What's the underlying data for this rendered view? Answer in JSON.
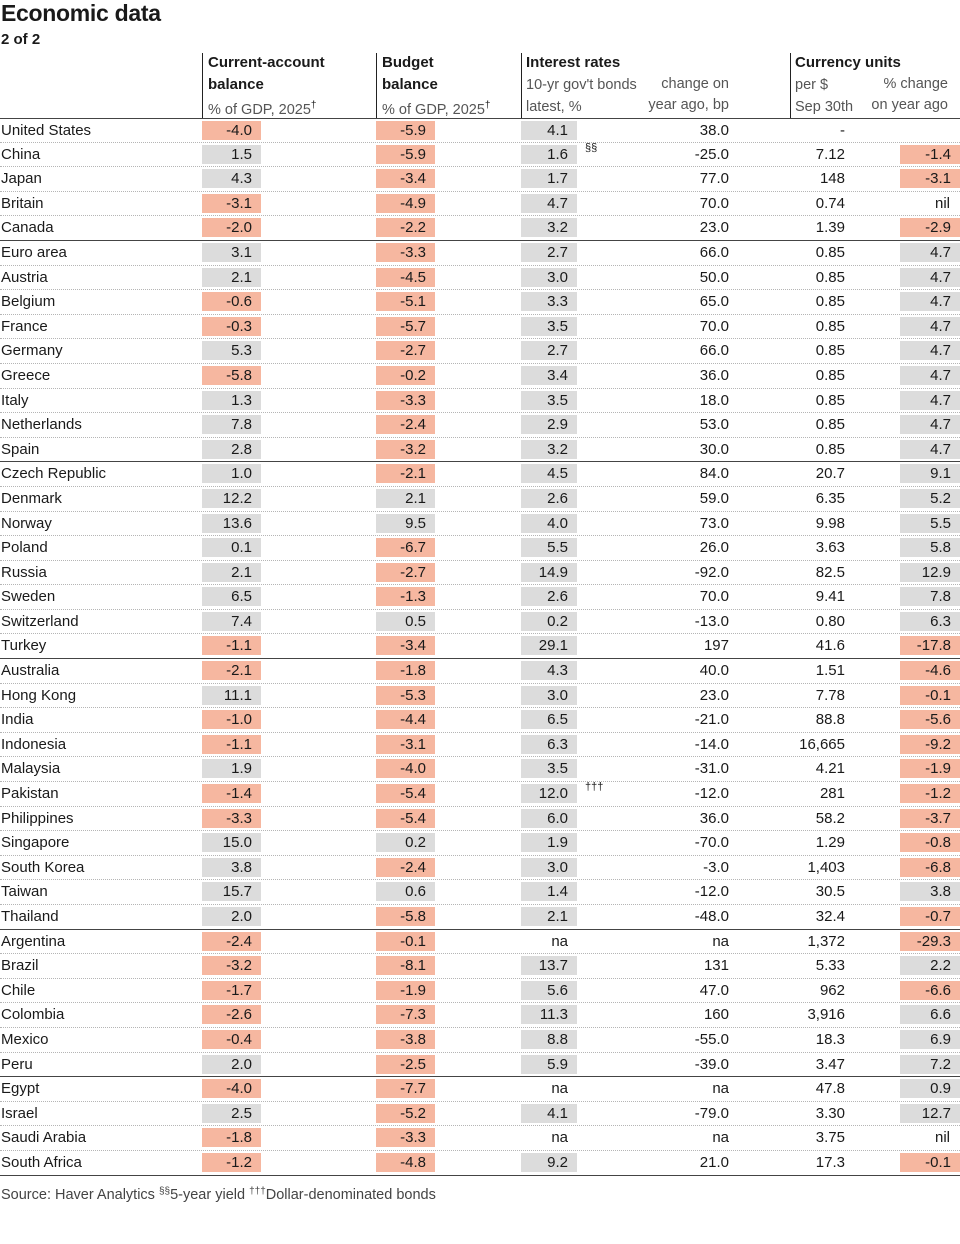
{
  "title": "Economic data",
  "subtitle": "2 of 2",
  "headers": {
    "current_account": {
      "line1": "Current-account",
      "line2": "balance",
      "line3": "% of GDP, 2025",
      "mark": "†"
    },
    "budget": {
      "line1": "Budget",
      "line2": "balance",
      "line3": "% of GDP, 2025",
      "mark": "†"
    },
    "interest": {
      "line1": "Interest rates",
      "sub_a1": "10-yr gov't bonds",
      "sub_a2": "latest, %",
      "sub_b1": "change on",
      "sub_b2": "year ago, bp"
    },
    "currency": {
      "line1": "Currency units",
      "sub_a1": "per $",
      "sub_a2": "Sep 30th",
      "sub_b1": "% change",
      "sub_b2": "on year ago"
    }
  },
  "rows": [
    {
      "country": "United States",
      "ca": "-4.0",
      "bb": "-5.9",
      "ir": "4.1",
      "chg": "38.0",
      "usd": "-",
      "fx": "",
      "end": false
    },
    {
      "country": "China",
      "ca": "1.5",
      "bb": "-5.9",
      "ir": "1.6",
      "fn": "§§",
      "chg": "-25.0",
      "usd": "7.12",
      "fx": "-1.4",
      "end": false
    },
    {
      "country": "Japan",
      "ca": "4.3",
      "bb": "-3.4",
      "ir": "1.7",
      "chg": "77.0",
      "usd": "148",
      "fx": "-3.1",
      "end": false
    },
    {
      "country": "Britain",
      "ca": "-3.1",
      "bb": "-4.9",
      "ir": "4.7",
      "chg": "70.0",
      "usd": "0.74",
      "fx": "nil",
      "end": false
    },
    {
      "country": "Canada",
      "ca": "-2.0",
      "bb": "-2.2",
      "ir": "3.2",
      "chg": "23.0",
      "usd": "1.39",
      "fx": "-2.9",
      "end": true
    },
    {
      "country": "Euro area",
      "ca": "3.1",
      "bb": "-3.3",
      "ir": "2.7",
      "chg": "66.0",
      "usd": "0.85",
      "fx": "4.7",
      "end": false
    },
    {
      "country": "Austria",
      "ca": "2.1",
      "bb": "-4.5",
      "ir": "3.0",
      "chg": "50.0",
      "usd": "0.85",
      "fx": "4.7",
      "end": false
    },
    {
      "country": "Belgium",
      "ca": "-0.6",
      "bb": "-5.1",
      "ir": "3.3",
      "chg": "65.0",
      "usd": "0.85",
      "fx": "4.7",
      "end": false
    },
    {
      "country": "France",
      "ca": "-0.3",
      "bb": "-5.7",
      "ir": "3.5",
      "chg": "70.0",
      "usd": "0.85",
      "fx": "4.7",
      "end": false
    },
    {
      "country": "Germany",
      "ca": "5.3",
      "bb": "-2.7",
      "ir": "2.7",
      "chg": "66.0",
      "usd": "0.85",
      "fx": "4.7",
      "end": false
    },
    {
      "country": "Greece",
      "ca": "-5.8",
      "bb": "-0.2",
      "ir": "3.4",
      "chg": "36.0",
      "usd": "0.85",
      "fx": "4.7",
      "end": false
    },
    {
      "country": "Italy",
      "ca": "1.3",
      "bb": "-3.3",
      "ir": "3.5",
      "chg": "18.0",
      "usd": "0.85",
      "fx": "4.7",
      "end": false
    },
    {
      "country": "Netherlands",
      "ca": "7.8",
      "bb": "-2.4",
      "ir": "2.9",
      "chg": "53.0",
      "usd": "0.85",
      "fx": "4.7",
      "end": false
    },
    {
      "country": "Spain",
      "ca": "2.8",
      "bb": "-3.2",
      "ir": "3.2",
      "chg": "30.0",
      "usd": "0.85",
      "fx": "4.7",
      "end": true
    },
    {
      "country": "Czech Republic",
      "ca": "1.0",
      "bb": "-2.1",
      "ir": "4.5",
      "chg": "84.0",
      "usd": "20.7",
      "fx": "9.1",
      "end": false
    },
    {
      "country": "Denmark",
      "ca": "12.2",
      "bb": "2.1",
      "ir": "2.6",
      "chg": "59.0",
      "usd": "6.35",
      "fx": "5.2",
      "end": false
    },
    {
      "country": "Norway",
      "ca": "13.6",
      "bb": "9.5",
      "ir": "4.0",
      "chg": "73.0",
      "usd": "9.98",
      "fx": "5.5",
      "end": false
    },
    {
      "country": "Poland",
      "ca": "0.1",
      "bb": "-6.7",
      "ir": "5.5",
      "chg": "26.0",
      "usd": "3.63",
      "fx": "5.8",
      "end": false
    },
    {
      "country": "Russia",
      "ca": "2.1",
      "bb": "-2.7",
      "ir": "14.9",
      "chg": "-92.0",
      "usd": "82.5",
      "fx": "12.9",
      "end": false
    },
    {
      "country": "Sweden",
      "ca": "6.5",
      "bb": "-1.3",
      "ir": "2.6",
      "chg": "70.0",
      "usd": "9.41",
      "fx": "7.8",
      "end": false
    },
    {
      "country": "Switzerland",
      "ca": "7.4",
      "bb": "0.5",
      "ir": "0.2",
      "chg": "-13.0",
      "usd": "0.80",
      "fx": "6.3",
      "end": false
    },
    {
      "country": "Turkey",
      "ca": "-1.1",
      "bb": "-3.4",
      "ir": "29.1",
      "chg": "197",
      "usd": "41.6",
      "fx": "-17.8",
      "end": true
    },
    {
      "country": "Australia",
      "ca": "-2.1",
      "bb": "-1.8",
      "ir": "4.3",
      "chg": "40.0",
      "usd": "1.51",
      "fx": "-4.6",
      "end": false
    },
    {
      "country": "Hong Kong",
      "ca": "11.1",
      "bb": "-5.3",
      "ir": "3.0",
      "chg": "23.0",
      "usd": "7.78",
      "fx": "-0.1",
      "end": false
    },
    {
      "country": "India",
      "ca": "-1.0",
      "bb": "-4.4",
      "ir": "6.5",
      "chg": "-21.0",
      "usd": "88.8",
      "fx": "-5.6",
      "end": false
    },
    {
      "country": "Indonesia",
      "ca": "-1.1",
      "bb": "-3.1",
      "ir": "6.3",
      "chg": "-14.0",
      "usd": "16,665",
      "fx": "-9.2",
      "end": false
    },
    {
      "country": "Malaysia",
      "ca": "1.9",
      "bb": "-4.0",
      "ir": "3.5",
      "chg": "-31.0",
      "usd": "4.21",
      "fx": "-1.9",
      "end": false
    },
    {
      "country": "Pakistan",
      "ca": "-1.4",
      "bb": "-5.4",
      "ir": "12.0",
      "fn": "†††",
      "chg": "-12.0",
      "usd": "281",
      "fx": "-1.2",
      "end": false
    },
    {
      "country": "Philippines",
      "ca": "-3.3",
      "bb": "-5.4",
      "ir": "6.0",
      "chg": "36.0",
      "usd": "58.2",
      "fx": "-3.7",
      "end": false
    },
    {
      "country": "Singapore",
      "ca": "15.0",
      "bb": "0.2",
      "ir": "1.9",
      "chg": "-70.0",
      "usd": "1.29",
      "fx": "-0.8",
      "end": false
    },
    {
      "country": "South Korea",
      "ca": "3.8",
      "bb": "-2.4",
      "ir": "3.0",
      "chg": "-3.0",
      "usd": "1,403",
      "fx": "-6.8",
      "end": false
    },
    {
      "country": "Taiwan",
      "ca": "15.7",
      "bb": "0.6",
      "ir": "1.4",
      "chg": "-12.0",
      "usd": "30.5",
      "fx": "3.8",
      "end": false
    },
    {
      "country": "Thailand",
      "ca": "2.0",
      "bb": "-5.8",
      "ir": "2.1",
      "chg": "-48.0",
      "usd": "32.4",
      "fx": "-0.7",
      "end": true
    },
    {
      "country": "Argentina",
      "ca": "-2.4",
      "bb": "-0.1",
      "ir": "na",
      "chg": "na",
      "usd": "1,372",
      "fx": "-29.3",
      "end": false
    },
    {
      "country": "Brazil",
      "ca": "-3.2",
      "bb": "-8.1",
      "ir": "13.7",
      "chg": "131",
      "usd": "5.33",
      "fx": "2.2",
      "end": false
    },
    {
      "country": "Chile",
      "ca": "-1.7",
      "bb": "-1.9",
      "ir": "5.6",
      "chg": "47.0",
      "usd": "962",
      "fx": "-6.6",
      "end": false
    },
    {
      "country": "Colombia",
      "ca": "-2.6",
      "bb": "-7.3",
      "ir": "11.3",
      "chg": "160",
      "usd": "3,916",
      "fx": "6.6",
      "end": false
    },
    {
      "country": "Mexico",
      "ca": "-0.4",
      "bb": "-3.8",
      "ir": "8.8",
      "chg": "-55.0",
      "usd": "18.3",
      "fx": "6.9",
      "end": false
    },
    {
      "country": "Peru",
      "ca": "2.0",
      "bb": "-2.5",
      "ir": "5.9",
      "chg": "-39.0",
      "usd": "3.47",
      "fx": "7.2",
      "end": true
    },
    {
      "country": "Egypt",
      "ca": "-4.0",
      "bb": "-7.7",
      "ir": "na",
      "chg": "na",
      "usd": "47.8",
      "fx": "0.9",
      "end": false
    },
    {
      "country": "Israel",
      "ca": "2.5",
      "bb": "-5.2",
      "ir": "4.1",
      "chg": "-79.0",
      "usd": "3.30",
      "fx": "12.7",
      "end": false
    },
    {
      "country": "Saudi Arabia",
      "ca": "-1.8",
      "bb": "-3.3",
      "ir": "na",
      "chg": "na",
      "usd": "3.75",
      "fx": "nil",
      "end": false
    },
    {
      "country": "South Africa",
      "ca": "-1.2",
      "bb": "-4.8",
      "ir": "9.2",
      "chg": "21.0",
      "usd": "17.3",
      "fx": "-0.1",
      "end": true
    }
  ],
  "source": {
    "text": "Source: Haver Analytics",
    "fn1_mark": "§§",
    "fn1_text": "5-year yield",
    "fn2_mark": "†††",
    "fn2_text": "Dollar-denominated bonds"
  },
  "colors": {
    "negative": "#f6b7a0",
    "positive": "#dcdcdc"
  }
}
